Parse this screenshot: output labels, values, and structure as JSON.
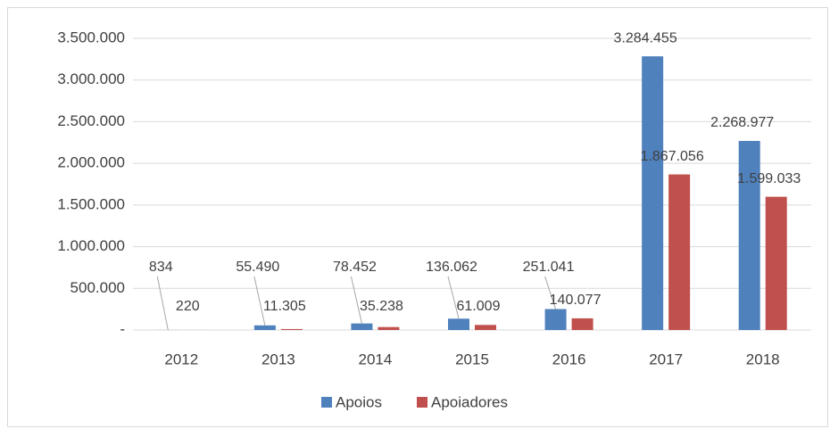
{
  "chart_data": {
    "type": "bar",
    "categories": [
      "2012",
      "2013",
      "2014",
      "2015",
      "2016",
      "2017",
      "2018"
    ],
    "series": [
      {
        "name": "Apoios",
        "color": "#4f81bd",
        "values": [
          834,
          55490,
          78452,
          136062,
          251041,
          3284455,
          2268977
        ],
        "value_labels": [
          "834",
          "55.490",
          "78.452",
          "136.062",
          "251.041",
          "3.284.455",
          "2.268.977"
        ]
      },
      {
        "name": "Apoiadores",
        "color": "#c0504d",
        "values": [
          220,
          11305,
          35238,
          61009,
          140077,
          1867056,
          1599033
        ],
        "value_labels": [
          "220",
          "11.305",
          "35.238",
          "61.009",
          "140.077",
          "1.867.056",
          "1.599.033"
        ]
      }
    ],
    "ylim": [
      0,
      3500000
    ],
    "yticks": [
      {
        "value": 0,
        "label": "-"
      },
      {
        "value": 500000,
        "label": "500.000"
      },
      {
        "value": 1000000,
        "label": "1.000.000"
      },
      {
        "value": 1500000,
        "label": "1.500.000"
      },
      {
        "value": 2000000,
        "label": "2.000.000"
      },
      {
        "value": 2500000,
        "label": "2.500.000"
      },
      {
        "value": 3000000,
        "label": "3.000.000"
      },
      {
        "value": 3500000,
        "label": "3.500.000"
      }
    ],
    "grid": true,
    "legend": "bottom"
  }
}
